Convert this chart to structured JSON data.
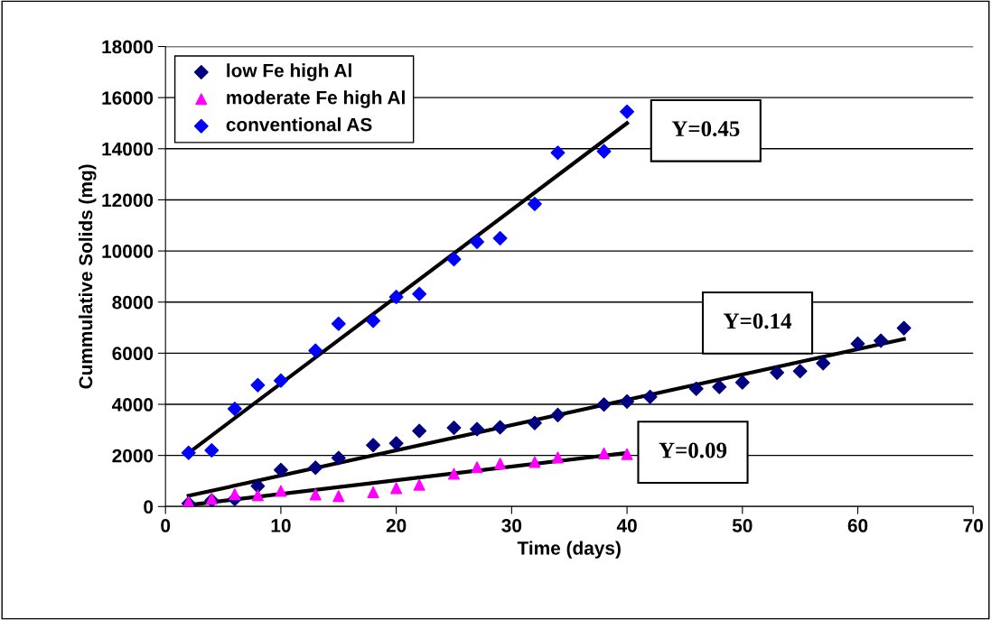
{
  "chart_data": {
    "type": "scatter",
    "xlabel": "Time (days)",
    "ylabel": "Cummulative Solids (mg)",
    "xlim": [
      0,
      70
    ],
    "ylim": [
      0,
      18000
    ],
    "xticks": [
      0,
      10,
      20,
      30,
      40,
      50,
      60,
      70
    ],
    "yticks": [
      0,
      2000,
      4000,
      6000,
      8000,
      10000,
      12000,
      14000,
      16000,
      18000
    ],
    "grid": "y",
    "legend": "top left",
    "series": [
      {
        "name": "low Fe high Al",
        "color": "#000080",
        "marker": "diamond",
        "x": [
          2,
          4,
          6,
          8,
          10,
          13,
          15,
          18,
          20,
          22,
          25,
          27,
          29,
          32,
          34,
          38,
          40,
          42,
          46,
          48,
          50,
          53,
          55,
          57,
          60,
          62,
          64
        ],
        "values": [
          120,
          240,
          290,
          800,
          1430,
          1520,
          1900,
          2400,
          2470,
          2960,
          3080,
          3030,
          3100,
          3270,
          3580,
          3990,
          4110,
          4290,
          4610,
          4680,
          4860,
          5240,
          5300,
          5610,
          6370,
          6490,
          6980
        ]
      },
      {
        "name": "moderate Fe high Al",
        "color": "#ff00ff",
        "marker": "triangle",
        "x": [
          2,
          4,
          6,
          8,
          10,
          13,
          15,
          18,
          20,
          22,
          25,
          27,
          29,
          32,
          34,
          38,
          40
        ],
        "values": [
          180,
          300,
          480,
          440,
          610,
          470,
          410,
          560,
          720,
          850,
          1280,
          1540,
          1680,
          1740,
          1920,
          2080,
          2050
        ]
      },
      {
        "name": "conventional AS",
        "color": "#0000ff",
        "marker": "diamond",
        "x": [
          2,
          4,
          6,
          8,
          10,
          13,
          15,
          18,
          20,
          22,
          25,
          27,
          29,
          32,
          34,
          38,
          40
        ],
        "values": [
          2100,
          2200,
          3820,
          4750,
          4930,
          6100,
          7150,
          7270,
          8200,
          8320,
          9680,
          10360,
          10500,
          11840,
          13840,
          13900,
          15450
        ]
      },
      {
        "type": "line",
        "color": "#000000",
        "line_style": "solid",
        "marker": "none",
        "x": [
          2,
          40
        ],
        "values": [
          2100,
          15000
        ]
      },
      {
        "type": "line",
        "color": "#000000",
        "line_style": "solid",
        "marker": "none",
        "x": [
          2,
          64
        ],
        "values": [
          420,
          6550
        ]
      },
      {
        "type": "line",
        "color": "#000000",
        "line_style": "solid",
        "marker": "none",
        "x": [
          2,
          40
        ],
        "values": [
          60,
          2100
        ]
      }
    ],
    "annotations": [
      "Y=0.45",
      "Y=0.14",
      "Y=0.09"
    ]
  }
}
